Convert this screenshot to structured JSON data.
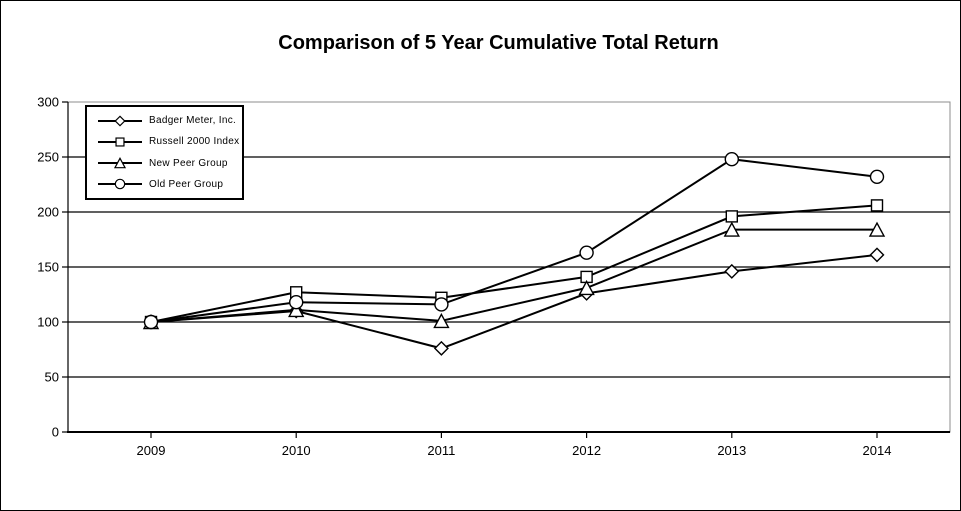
{
  "figure": {
    "title": "Comparison of 5 Year Cumulative Total Return"
  },
  "chart_data": {
    "type": "line",
    "title": "Comparison of 5 Year Cumulative Total Return",
    "categories": [
      "2009",
      "2010",
      "2011",
      "2012",
      "2013",
      "2014"
    ],
    "series": [
      {
        "name": "Badger Meter, Inc.",
        "marker": "diamond",
        "color": "#000000",
        "values": [
          100,
          110,
          76,
          126,
          146,
          161
        ]
      },
      {
        "name": "Russell 2000 Index",
        "marker": "square",
        "color": "#000000",
        "values": [
          100,
          127,
          122,
          141,
          196,
          206
        ]
      },
      {
        "name": "New Peer Group",
        "marker": "triangle",
        "color": "#000000",
        "values": [
          100,
          111,
          101,
          131,
          184,
          184
        ]
      },
      {
        "name": "Old Peer Group",
        "marker": "circle",
        "color": "#000000",
        "values": [
          100,
          118,
          116,
          163,
          248,
          232
        ]
      }
    ],
    "ylim": [
      0,
      300
    ],
    "yticks": [
      0,
      50,
      100,
      150,
      200,
      250,
      300
    ],
    "grid": true,
    "gridline_color": "#000000",
    "plot_border_color": "#8c8c8c",
    "axis_color": "#000000",
    "marker_fill": "#ffffff",
    "background": "#ffffff",
    "legend_position": "top-left-inside",
    "xlabel": "",
    "ylabel": ""
  }
}
